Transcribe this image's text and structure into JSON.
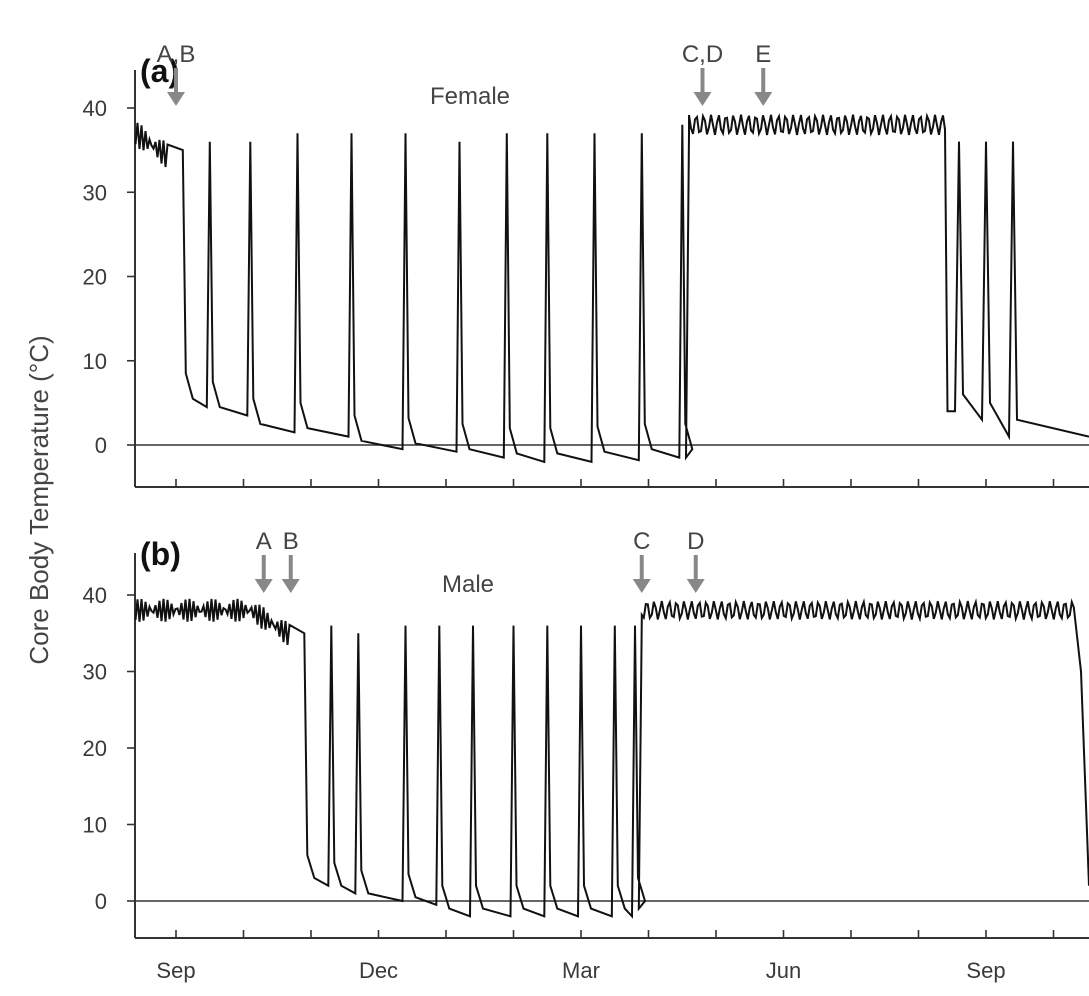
{
  "figure": {
    "ylabel": "Core Body Temperature (°C)"
  },
  "chart_data": [
    {
      "type": "line",
      "panel": "(a)",
      "series_label": "Female",
      "ylim": [
        -5,
        45
      ],
      "yticks": [
        0,
        10,
        20,
        30,
        40
      ],
      "xticks": [
        "Sep",
        "Dec",
        "Mar",
        "Jun",
        "Sep"
      ],
      "reference_line": 0,
      "grid": false,
      "annotations": [
        {
          "label": "A,B",
          "x_month": 0.0
        },
        {
          "label": "C,D",
          "x_month": 7.8
        },
        {
          "label": "E",
          "x_month": 8.7
        }
      ],
      "series": [
        {
          "euthermic_start": {
            "x_start": -0.6,
            "x_end": -0.1,
            "y": 37.5
          },
          "torpor_entry": 0.1,
          "arousals": [
            0.1,
            0.5,
            1.1,
            1.8,
            2.6,
            3.4,
            4.2,
            4.9,
            5.5,
            6.2,
            6.9,
            7.5
          ],
          "arousal_peak": [
            35,
            36,
            36,
            37,
            37,
            37,
            36,
            37,
            37,
            37,
            37,
            38
          ],
          "torpor_floor": [
            4.5,
            3.5,
            1.5,
            1,
            -0.5,
            -0.8,
            -1.5,
            -2,
            -2,
            -1.8,
            -1.5,
            -1.5
          ],
          "euthermic_end": {
            "x_start": 7.6,
            "x_end": 11.4,
            "y": 38
          },
          "second_torpor_arousals": [
            11.6,
            12.0,
            12.4
          ],
          "second_torpor_floor": [
            4,
            3,
            1
          ]
        }
      ]
    },
    {
      "type": "line",
      "panel": "(b)",
      "series_label": "Male",
      "ylim": [
        -5,
        45
      ],
      "yticks": [
        0,
        10,
        20,
        30,
        40
      ],
      "xticks": [
        "Sep",
        "Dec",
        "Mar",
        "Jun",
        "Sep"
      ],
      "reference_line": 0,
      "grid": false,
      "annotations": [
        {
          "label": "A",
          "x_month": 1.3
        },
        {
          "label": "B",
          "x_month": 1.7
        },
        {
          "label": "C",
          "x_month": 6.9
        },
        {
          "label": "D",
          "x_month": 7.7
        }
      ],
      "series": [
        {
          "euthermic_start": {
            "x_start": -0.6,
            "x_end": 1.7,
            "y": 38
          },
          "torpor_entry": 1.7,
          "arousals": [
            1.9,
            2.3,
            2.7,
            3.4,
            3.9,
            4.4,
            5.0,
            5.5,
            6.0,
            6.5,
            6.8
          ],
          "arousal_peak": [
            35,
            36,
            35,
            36,
            36,
            36,
            36,
            36,
            36,
            36,
            36
          ],
          "torpor_floor": [
            2,
            1,
            0,
            -0.5,
            -2,
            -2,
            -2,
            -2,
            -2,
            -2,
            -1
          ],
          "euthermic_end": {
            "x_start": 6.9,
            "x_end": 13.3,
            "y": 38
          }
        }
      ]
    }
  ]
}
